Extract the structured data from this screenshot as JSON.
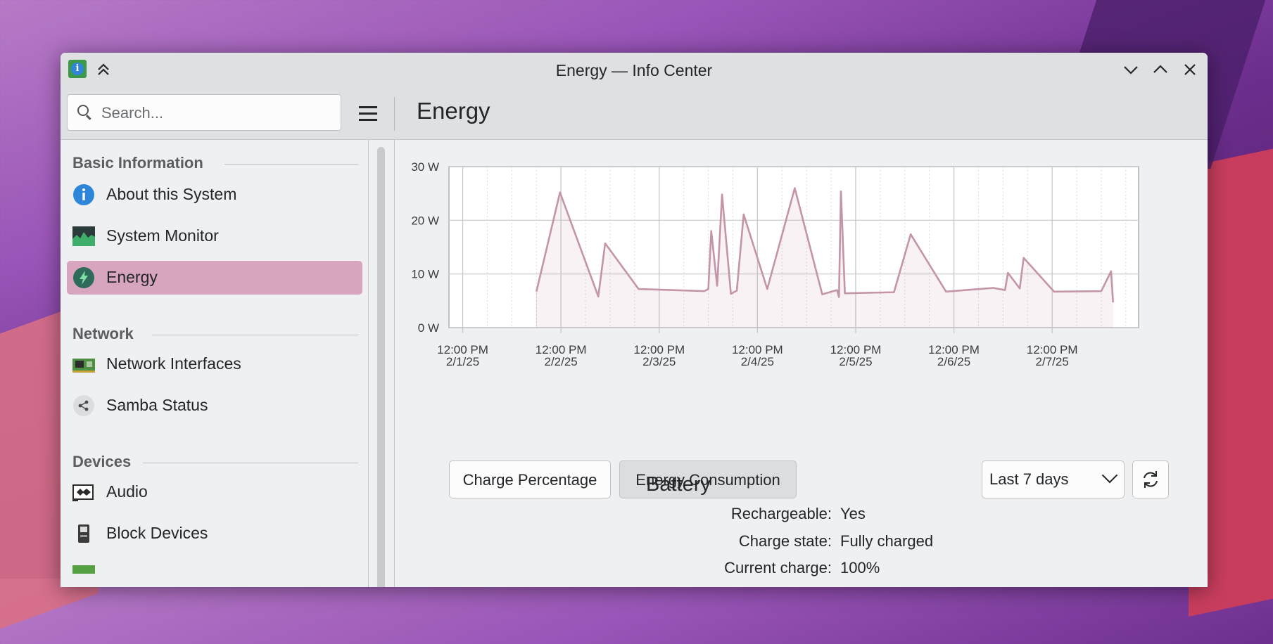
{
  "window": {
    "title": "Energy — Info Center",
    "buttons": {
      "minimize": "⌄",
      "maximize": "⌃",
      "close": "✕",
      "keep_above": "⌃⌃"
    }
  },
  "header": {
    "search_placeholder": "Search...",
    "page_title": "Energy"
  },
  "sidebar": {
    "sections": [
      {
        "title": "Basic Information",
        "items": [
          {
            "label": "About this System",
            "icon": "info-icon"
          },
          {
            "label": "System Monitor",
            "icon": "system-monitor-icon"
          },
          {
            "label": "Energy",
            "icon": "energy-icon",
            "active": true
          }
        ]
      },
      {
        "title": "Network",
        "items": [
          {
            "label": "Network Interfaces",
            "icon": "network-card-icon"
          },
          {
            "label": "Samba Status",
            "icon": "share-icon"
          }
        ]
      },
      {
        "title": "Devices",
        "items": [
          {
            "label": "Audio",
            "icon": "audio-card-icon"
          },
          {
            "label": "Block Devices",
            "icon": "block-device-icon"
          }
        ]
      }
    ]
  },
  "chart_data": {
    "type": "line",
    "ylabel": "",
    "ylim": [
      0,
      30
    ],
    "y_ticks": [
      "0 W",
      "10 W",
      "20 W",
      "30 W"
    ],
    "x_ticks": [
      {
        "time": "12:00 PM",
        "date": "2/1/25"
      },
      {
        "time": "12:00 PM",
        "date": "2/2/25"
      },
      {
        "time": "12:00 PM",
        "date": "2/3/25"
      },
      {
        "time": "12:00 PM",
        "date": "2/4/25"
      },
      {
        "time": "12:00 PM",
        "date": "2/5/25"
      },
      {
        "time": "12:00 PM",
        "date": "2/6/25"
      },
      {
        "time": "12:00 PM",
        "date": "2/7/25"
      }
    ],
    "x_unit": "days",
    "x_range": [
      0.36,
      7.38
    ],
    "series": [
      {
        "color": "#c494a8",
        "points": [
          [
            1.25,
            6.7
          ],
          [
            1.49,
            25.2
          ],
          [
            1.88,
            5.8
          ],
          [
            1.95,
            15.7
          ],
          [
            2.29,
            7.2
          ],
          [
            2.96,
            6.8
          ],
          [
            3.0,
            7.2
          ],
          [
            3.03,
            18.0
          ],
          [
            3.09,
            7.8
          ],
          [
            3.14,
            24.8
          ],
          [
            3.23,
            6.3
          ],
          [
            3.29,
            6.9
          ],
          [
            3.36,
            21.1
          ],
          [
            3.6,
            7.2
          ],
          [
            3.88,
            26.0
          ],
          [
            4.16,
            6.2
          ],
          [
            4.31,
            7.0
          ],
          [
            4.33,
            5.7
          ],
          [
            4.35,
            25.4
          ],
          [
            4.39,
            6.4
          ],
          [
            4.89,
            6.6
          ],
          [
            5.06,
            17.4
          ],
          [
            5.42,
            6.7
          ],
          [
            5.9,
            7.4
          ],
          [
            6.02,
            7.0
          ],
          [
            6.05,
            10.2
          ],
          [
            6.17,
            7.3
          ],
          [
            6.21,
            13.0
          ],
          [
            6.52,
            6.7
          ],
          [
            7.0,
            6.8
          ],
          [
            7.1,
            10.5
          ],
          [
            7.12,
            4.7
          ]
        ]
      }
    ]
  },
  "controls": {
    "charge_percentage": "Charge Percentage",
    "energy_consumption": "Energy Consumption",
    "range_select": "Last 7 days"
  },
  "battery": {
    "heading": "Battery",
    "rows": [
      {
        "key": "Rechargeable:",
        "value": "Yes"
      },
      {
        "key": "Charge state:",
        "value": "Fully charged"
      },
      {
        "key": "Current charge:",
        "value": "100%"
      }
    ]
  }
}
